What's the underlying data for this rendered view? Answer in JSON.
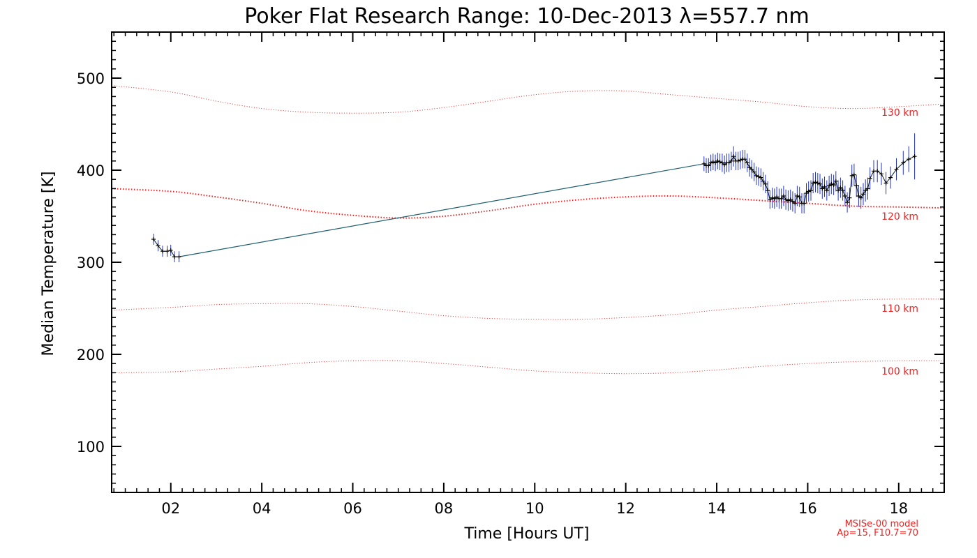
{
  "colors": {
    "model": "#ee2222",
    "data_line": "#0a1a24",
    "error_bar": "#2233cc",
    "connector": "#1f5f6f",
    "axis": "#000000"
  },
  "chart_data": {
    "type": "line",
    "title": "Poker Flat Research Range: 10-Dec-2013 λ=557.7 nm",
    "xlabel": "Time [Hours UT]",
    "ylabel": "Median Temperature [K]",
    "xlim": [
      0.7,
      19.0
    ],
    "ylim": [
      50,
      550
    ],
    "x_ticks": [
      2,
      4,
      6,
      8,
      10,
      12,
      14,
      16,
      18
    ],
    "x_tick_labels": [
      "02",
      "04",
      "06",
      "08",
      "10",
      "12",
      "14",
      "16",
      "18"
    ],
    "y_ticks": [
      100,
      200,
      300,
      400,
      500
    ],
    "y_tick_labels": [
      "100",
      "200",
      "300",
      "400",
      "500"
    ],
    "model_note": [
      "MSISe-00 model",
      "Ap=15, F10.7=70"
    ],
    "model_series": [
      {
        "name": "130 km",
        "label": "130 km",
        "label_value": 463,
        "bold": false,
        "x": [
          0.7,
          2,
          3,
          4,
          5,
          6,
          7,
          8,
          9,
          10,
          11,
          12,
          13,
          14,
          15,
          16,
          17,
          18,
          19
        ],
        "y": [
          492,
          485,
          475,
          467,
          463,
          462,
          463,
          468,
          475,
          482,
          486,
          486,
          482,
          478,
          474,
          469,
          467,
          469,
          472
        ]
      },
      {
        "name": "120 km",
        "label": "120 km",
        "label_value": 350,
        "bold": true,
        "x": [
          0.7,
          2,
          3,
          4,
          5,
          6,
          7,
          8,
          9,
          10,
          11,
          12,
          13,
          14,
          15,
          16,
          17,
          18,
          19
        ],
        "y": [
          380,
          377,
          371,
          364,
          356,
          351,
          348,
          350,
          356,
          363,
          368,
          371,
          372,
          370,
          367,
          364,
          361,
          360,
          359
        ]
      },
      {
        "name": "110 km",
        "label": "110 km",
        "label_value": 250,
        "bold": false,
        "x": [
          0.7,
          2,
          3,
          4,
          5,
          6,
          7,
          8,
          9,
          10,
          11,
          12,
          13,
          14,
          15,
          16,
          17,
          18,
          19
        ],
        "y": [
          248,
          251,
          254,
          255,
          255,
          252,
          247,
          242,
          239,
          238,
          238,
          240,
          243,
          248,
          252,
          256,
          259,
          260,
          260
        ]
      },
      {
        "name": "100 km",
        "label": "100 km",
        "label_value": 182,
        "bold": false,
        "x": [
          0.7,
          2,
          3,
          4,
          5,
          6,
          7,
          8,
          9,
          10,
          11,
          12,
          13,
          14,
          15,
          16,
          17,
          18,
          19
        ],
        "y": [
          180,
          181,
          184,
          187,
          191,
          193,
          193,
          190,
          186,
          182,
          180,
          179,
          180,
          183,
          187,
          190,
          192,
          193,
          193
        ]
      }
    ],
    "series": [
      {
        "name": "Median Temperature",
        "x": [
          1.62,
          1.72,
          1.82,
          1.92,
          2.0,
          2.08,
          2.18,
          13.72,
          13.77,
          13.82,
          13.87,
          13.92,
          13.97,
          14.02,
          14.07,
          14.12,
          14.17,
          14.22,
          14.27,
          14.32,
          14.37,
          14.42,
          14.47,
          14.52,
          14.57,
          14.62,
          14.67,
          14.72,
          14.77,
          14.82,
          14.87,
          14.92,
          14.97,
          15.02,
          15.07,
          15.12,
          15.17,
          15.22,
          15.27,
          15.32,
          15.37,
          15.42,
          15.47,
          15.52,
          15.57,
          15.62,
          15.67,
          15.72,
          15.77,
          15.82,
          15.87,
          15.92,
          15.97,
          16.02,
          16.07,
          16.12,
          16.17,
          16.22,
          16.27,
          16.32,
          16.37,
          16.42,
          16.47,
          16.52,
          16.57,
          16.62,
          16.67,
          16.72,
          16.77,
          16.82,
          16.87,
          16.92,
          16.97,
          17.02,
          17.07,
          17.12,
          17.17,
          17.22,
          17.27,
          17.32,
          17.37,
          17.45,
          17.53,
          17.62,
          17.72,
          17.82,
          17.95,
          18.1,
          18.22,
          18.35
        ],
        "y": [
          325,
          318,
          312,
          312,
          313,
          306,
          306,
          407,
          405,
          405,
          408,
          409,
          408,
          410,
          409,
          408,
          406,
          408,
          408,
          410,
          415,
          410,
          410,
          411,
          412,
          412,
          408,
          403,
          401,
          398,
          394,
          393,
          392,
          388,
          385,
          378,
          368,
          370,
          369,
          371,
          369,
          369,
          372,
          368,
          367,
          368,
          366,
          364,
          372,
          371,
          364,
          364,
          375,
          377,
          378,
          386,
          387,
          386,
          385,
          380,
          382,
          378,
          383,
          385,
          384,
          388,
          378,
          381,
          378,
          372,
          365,
          370,
          394,
          395,
          383,
          372,
          370,
          374,
          378,
          380,
          391,
          399,
          399,
          396,
          386,
          392,
          401,
          408,
          412,
          415
        ],
        "err": [
          6,
          6,
          6,
          6,
          6,
          6,
          6,
          8,
          8,
          8,
          9,
          9,
          9,
          9,
          9,
          10,
          10,
          10,
          10,
          10,
          11,
          10,
          10,
          10,
          10,
          10,
          10,
          10,
          10,
          10,
          10,
          10,
          10,
          10,
          10,
          10,
          10,
          11,
          11,
          11,
          11,
          11,
          11,
          11,
          11,
          11,
          11,
          11,
          11,
          11,
          11,
          11,
          11,
          11,
          11,
          11,
          11,
          11,
          11,
          11,
          11,
          11,
          11,
          11,
          11,
          11,
          11,
          11,
          11,
          11,
          11,
          11,
          12,
          12,
          12,
          12,
          12,
          12,
          12,
          12,
          12,
          12,
          12,
          12,
          12,
          12,
          12,
          13,
          14,
          25
        ]
      }
    ]
  }
}
